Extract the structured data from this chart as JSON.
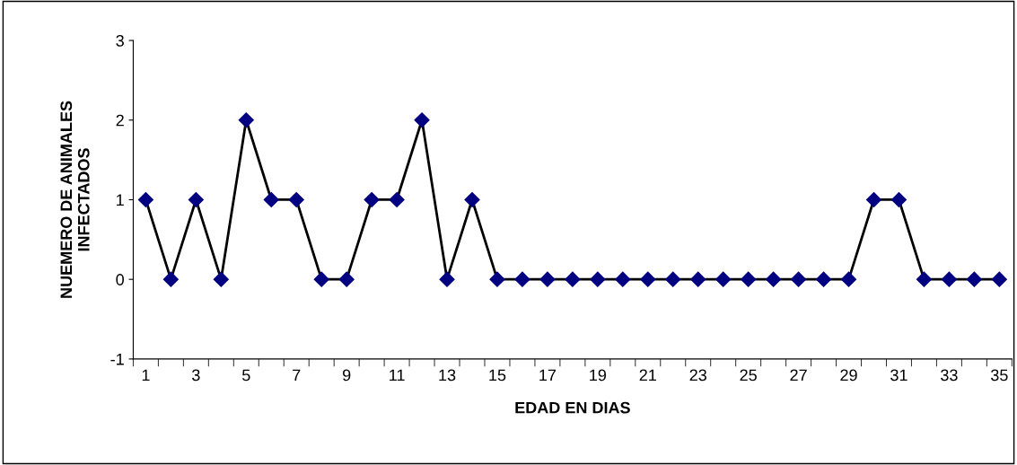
{
  "chart_data": {
    "type": "line",
    "xlabel": "EDAD EN DIAS",
    "ylabel": "NUEMERO DE ANIMALES\nINFECTADOS",
    "categories": [
      "1",
      null,
      "3",
      null,
      "5",
      null,
      "7",
      null,
      "9",
      null,
      "11",
      null,
      "13",
      null,
      "15",
      null,
      "17",
      null,
      "19",
      null,
      "21",
      null,
      "23",
      null,
      "25",
      null,
      "27",
      null,
      "29",
      null,
      "31",
      null,
      "33",
      null,
      "35"
    ],
    "series": [
      {
        "color": "#000080",
        "values": [
          1,
          0,
          1,
          0,
          2,
          1,
          1,
          0,
          0,
          1,
          1,
          2,
          0,
          1,
          0,
          0,
          0,
          0,
          0,
          0,
          0,
          0,
          0,
          0,
          0,
          0,
          0,
          0,
          0,
          1,
          1,
          0,
          0,
          0,
          0
        ]
      }
    ],
    "ylim": [
      -1,
      3
    ],
    "yticks": [
      -1,
      0,
      1,
      2,
      3
    ],
    "grid": false,
    "legend": false,
    "marker": "diamond",
    "line_style": "solid"
  }
}
